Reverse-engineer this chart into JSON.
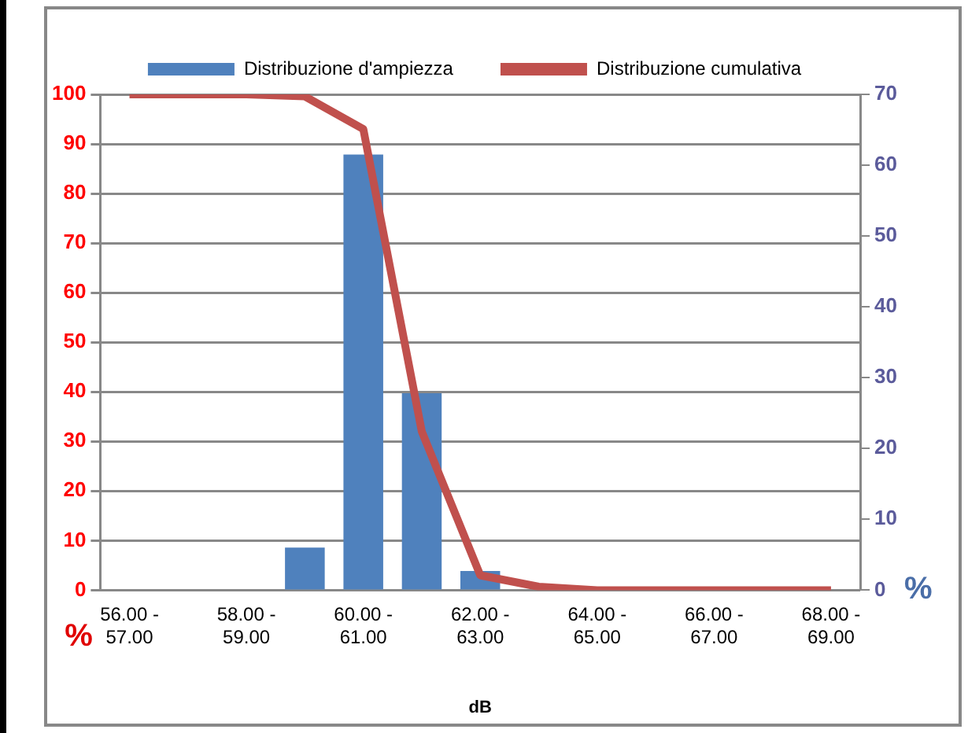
{
  "chart_data": {
    "type": "bar",
    "xlabel": "dB",
    "ylabel": "%",
    "y2label": "%",
    "categories": [
      "56.00 - 57.00",
      null,
      "58.00 - 59.00",
      null,
      "60.00 - 61.00",
      null,
      "62.00 - 63.00",
      null,
      "64.00 - 65.00",
      null,
      "66.00 - 67.00",
      null,
      "68.00 - 69.00"
    ],
    "series": [
      {
        "name": "Distribuzione d'ampiezza",
        "axis": "y2",
        "color": "#4f81bd",
        "values": [
          0,
          0,
          0,
          6.0,
          61.5,
          27.8,
          2.7,
          0,
          0,
          0,
          0,
          0,
          0
        ]
      },
      {
        "name": "Distribuzione cumulativa",
        "type": "line",
        "color": "#c0504d",
        "marker": "none",
        "values": [
          100,
          100,
          100,
          99.6,
          93,
          32,
          3,
          0.7,
          0,
          0,
          0,
          0,
          0
        ]
      }
    ],
    "ylim": [
      0,
      100
    ],
    "yticks": [
      0,
      10,
      20,
      30,
      40,
      50,
      60,
      70,
      80,
      90,
      100
    ],
    "y2lim": [
      0,
      70
    ],
    "y2ticks": [
      0,
      10,
      20,
      30,
      40,
      50,
      60,
      70
    ],
    "grid": "y",
    "legend": "top"
  }
}
